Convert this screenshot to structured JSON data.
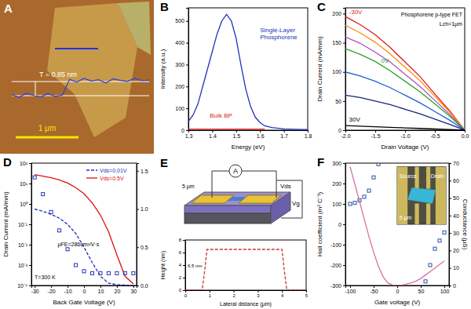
{
  "afm_image": {
    "label": "A",
    "thickness_label": "T = 0.85 nm",
    "scale_bar": "1 μm",
    "profile_nm": [
      0.05,
      -0.1,
      0.12,
      0,
      -0.08,
      0.1,
      -0.05,
      0.02,
      0.9,
      0.75,
      0.95,
      0.8,
      0.88,
      0.7,
      0.92,
      0.85,
      0.78,
      0.95,
      0.83,
      0.86
    ]
  },
  "device_schematic": {
    "label": "E",
    "scale_bar": "5 μm",
    "meter": "A",
    "drain_voltage": "Vds",
    "gate_voltage": "Vg"
  },
  "chart_data": [
    {
      "type": "line",
      "title": "B",
      "x_label": "Energy (eV)",
      "y_label": "Intensity (a.u.)",
      "x": [
        1.3,
        1.32,
        1.34,
        1.36,
        1.38,
        1.4,
        1.42,
        1.44,
        1.46,
        1.48,
        1.5,
        1.52,
        1.54,
        1.56,
        1.58,
        1.6,
        1.62,
        1.65,
        1.7,
        1.75,
        1.8
      ],
      "series": [
        {
          "name": "Single-Layer Phosphorene",
          "color": "#2233bb",
          "values": [
            40,
            70,
            120,
            200,
            280,
            360,
            440,
            500,
            530,
            500,
            420,
            300,
            190,
            110,
            60,
            35,
            20,
            12,
            6,
            4,
            3
          ]
        },
        {
          "name": "Bulk BP",
          "color": "#dd2222",
          "values": [
            5,
            5,
            5,
            5,
            5,
            5,
            5,
            5,
            5,
            5,
            5,
            5,
            5,
            5,
            5,
            5,
            5,
            null,
            null,
            null,
            null
          ]
        }
      ],
      "xlim": [
        1.3,
        1.8
      ],
      "xticks": [
        1.3,
        1.4,
        1.5,
        1.6,
        1.7,
        1.8
      ],
      "ylim": [
        0,
        560
      ],
      "yticks": [
        0,
        100,
        200,
        300,
        400,
        500
      ]
    },
    {
      "type": "line",
      "title": "C",
      "x_label": "Drain Voltage (V)",
      "y_label": "Drain Current (mA/mm)",
      "annotations": [
        "Phosphorene p-type FET",
        "Lch=1μm"
      ],
      "x": [
        -2,
        -1.75,
        -1.5,
        -1.25,
        -1,
        -0.75,
        -0.5,
        -0.25,
        0
      ],
      "series": [
        {
          "name": "-30V",
          "color": "#e41a1c",
          "values": [
            195,
            181,
            164,
            142,
            117,
            92,
            62,
            33,
            0
          ]
        },
        {
          "color": "#ff8c00",
          "values": [
            180,
            167,
            151,
            131,
            108,
            85,
            58,
            31,
            0
          ]
        },
        {
          "color": "#b04fc0",
          "values": [
            160,
            149,
            134,
            117,
            96,
            75,
            51,
            27,
            0
          ]
        },
        {
          "name": "0V",
          "color": "#2ca02c",
          "values": [
            140,
            130,
            118,
            102,
            84,
            66,
            45,
            24,
            0
          ]
        },
        {
          "color": "#1f5fd6",
          "values": [
            100,
            93,
            84,
            73,
            60,
            47,
            32,
            17,
            0
          ]
        },
        {
          "color": "#1a237e",
          "values": [
            60,
            56,
            50,
            44,
            36,
            28,
            19,
            10,
            0
          ]
        },
        {
          "name": "30V",
          "color": "#000000",
          "values": [
            8,
            7,
            6,
            5,
            4,
            3,
            2,
            1,
            0
          ]
        }
      ],
      "xlim": [
        -2,
        0
      ],
      "xticks": [
        {
          "value": -2,
          "label": "-2.0"
        },
        -1.5,
        {
          "value": -1,
          "label": "-1.0"
        },
        -0.5,
        {
          "value": 0,
          "label": "0.0"
        }
      ],
      "ylim": [
        0,
        210
      ],
      "yticks": [
        0,
        50,
        100,
        150,
        200
      ]
    },
    {
      "type": "line",
      "title": "D",
      "x_label": "Back Gate Voltage (V)",
      "y_label": "Drain Current (mA/mm)",
      "annotations": [
        "μFE=286cm²/V·s",
        "T=300 K"
      ],
      "log": "y",
      "legend": "upper right",
      "x": [
        -30,
        -25,
        -20,
        -15,
        -10,
        -5,
        0,
        5,
        10,
        15,
        20,
        25,
        30
      ],
      "series": [
        {
          "name": "Vds=0.01V",
          "color": "#2233bb",
          "line_style": "dashed",
          "axis": "y2",
          "values": [
            1.0,
            0.97,
            0.93,
            0.88,
            0.8,
            0.68,
            0.5,
            0.3,
            0.12,
            0.03,
            0.01,
            0.005,
            0.0
          ]
        },
        {
          "name": "Vds=0.5V",
          "color": "#dd1111",
          "axis": "y2",
          "values": [
            1.45,
            1.43,
            1.41,
            1.38,
            1.34,
            1.28,
            1.2,
            1.08,
            0.92,
            0.7,
            0.4,
            0.12,
            0.02
          ]
        },
        {
          "type": "scatter",
          "marker": "square",
          "color": "#2233bb",
          "values": [
            20,
            3,
            0.4,
            0.05,
            0.006,
            0.001,
            0.0005,
            0.0004,
            0.0004,
            0.0004,
            0.0004,
            0.0004,
            0.0004
          ]
        }
      ],
      "xlim": [
        -32,
        32
      ],
      "xticks": [
        -30,
        -20,
        -10,
        0,
        10,
        20,
        30
      ],
      "ylim": [
        0.0001,
        100
      ],
      "yticks": [
        {
          "value": 0.0001,
          "label": "10⁻⁴"
        },
        {
          "value": 0.001,
          "label": "10⁻³"
        },
        {
          "value": 0.01,
          "label": "10⁻²"
        },
        {
          "value": 0.1,
          "label": "10⁻¹"
        },
        {
          "value": 1,
          "label": "10⁰"
        },
        {
          "value": 10,
          "label": "10¹"
        },
        {
          "value": 100,
          "label": "10²"
        }
      ],
      "y2lim": [
        0,
        1.6
      ],
      "y2ticks": [
        {
          "value": 0,
          "label": "0.0"
        },
        0.5,
        {
          "value": 1,
          "label": "1.0"
        },
        1.5
      ]
    },
    {
      "type": "line",
      "x_label": "Lateral distance (μm)",
      "y_label": "Height (nm)",
      "annotations": [
        "6.5 nm"
      ],
      "x": [
        0,
        0.7,
        0.8,
        0.9,
        4.0,
        4.1,
        4.2,
        5
      ],
      "series": [
        {
          "color": "#cc3333",
          "line_style": "dashed",
          "values": [
            0,
            0,
            3,
            6.5,
            6.5,
            3,
            0,
            0
          ]
        }
      ],
      "xlim": [
        0,
        5
      ],
      "xticks": [
        0,
        1,
        2,
        3,
        4,
        5
      ],
      "ylim": [
        0,
        8
      ],
      "yticks": [
        0,
        2,
        4,
        6,
        8
      ]
    },
    {
      "type": "scatter",
      "title": "F",
      "x_label": "Gate voltage (V)",
      "y_label": "Hall coefficient (m² C⁻¹)",
      "y2_label": "Conductance (μS)",
      "annotations": [
        "Source",
        "Drain",
        "5 μm"
      ],
      "x": [
        -100,
        -90,
        -80,
        -70,
        -60,
        -50,
        -40,
        -30,
        -20,
        -10,
        0,
        10,
        20,
        30,
        40,
        50,
        60,
        70,
        80,
        90,
        100
      ],
      "series": [
        {
          "marker": "square",
          "color": "#2a4fa8",
          "values": [
            100,
            105,
            118,
            135,
            165,
            230,
            295,
            null,
            null,
            null,
            null,
            null,
            null,
            null,
            null,
            null,
            -280,
            -200,
            -120,
            -80,
            -40
          ]
        },
        {
          "type": "line",
          "axis": "y2",
          "color": "#d6729a",
          "values": [
            68,
            58,
            48,
            38,
            28,
            19,
            11,
            5,
            1.5,
            0.3,
            0,
            0.2,
            0.8,
            1.5,
            2.5,
            4,
            6,
            8,
            10,
            12,
            14
          ]
        }
      ],
      "xlim": [
        -110,
        110
      ],
      "xticks": [
        -100,
        -50,
        0,
        50,
        100
      ],
      "ylim": [
        -300,
        300
      ],
      "yticks": [
        -300,
        -200,
        -100,
        0,
        100,
        200,
        300
      ],
      "y2lim": [
        0,
        70
      ],
      "y2ticks": [
        0,
        10,
        20,
        30,
        40,
        50,
        60,
        70
      ]
    }
  ]
}
